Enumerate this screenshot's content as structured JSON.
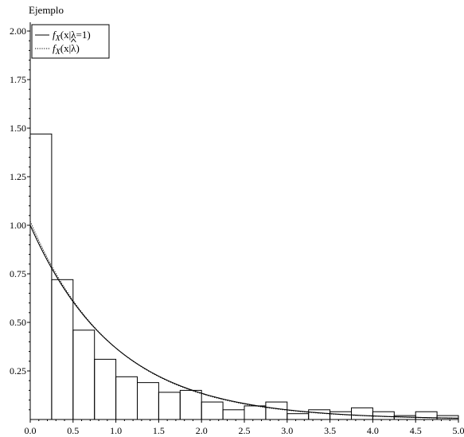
{
  "chart_data": {
    "type": "bar",
    "title": "Ejemplo",
    "xlabel": "",
    "ylabel": "",
    "xlim": [
      0.0,
      5.0
    ],
    "ylim": [
      0.0,
      2.0
    ],
    "grid": false,
    "legend_position": "top-left",
    "x_ticks": [
      "0.0",
      "0.5",
      "1.0",
      "1.5",
      "2.0",
      "2.5",
      "3.0",
      "3.5",
      "4.0",
      "4.5",
      "5.0"
    ],
    "y_ticks": [
      "0.25",
      "0.50",
      "0.75",
      "1.00",
      "1.25",
      "1.50",
      "1.75",
      "2.00"
    ],
    "histogram": {
      "bin_width": 0.25,
      "bin_starts": [
        0.0,
        0.25,
        0.5,
        0.75,
        1.0,
        1.25,
        1.5,
        1.75,
        2.0,
        2.25,
        2.5,
        2.75,
        3.0,
        3.25,
        3.5,
        3.75,
        4.0,
        4.25,
        4.5,
        4.75
      ],
      "values": [
        1.47,
        0.72,
        0.46,
        0.31,
        0.22,
        0.19,
        0.14,
        0.15,
        0.09,
        0.05,
        0.07,
        0.09,
        0.03,
        0.05,
        0.04,
        0.06,
        0.04,
        0.02,
        0.04,
        0.02
      ]
    },
    "series": [
      {
        "name": "f_X(x|λ=1)",
        "function": "exp(-x)",
        "lambda": 1.0,
        "line": "solid"
      },
      {
        "name": "f_X(x|λ̂)",
        "function": "lambda*exp(-lambda*x)",
        "lambda": 1.02,
        "line": "dotted"
      }
    ],
    "legend": [
      {
        "prefix": "f",
        "sub": "X",
        "pre": "(x|",
        "mid": "λ",
        "post": "=1)",
        "hat": false,
        "style": "solid"
      },
      {
        "prefix": "f",
        "sub": "X",
        "pre": "(x|",
        "mid": "λ",
        "post": ")",
        "hat": true,
        "style": "dotted"
      }
    ]
  }
}
